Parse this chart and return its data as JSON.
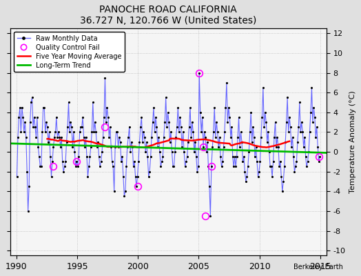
{
  "title": "PANOCHE ROAD CALIFORNIA",
  "subtitle": "36.727 N, 120.766 W (United States)",
  "ylabel": "Temperature Anomaly (°C)",
  "watermark": "Berkeley Earth",
  "xlim": [
    1989.5,
    2015.5
  ],
  "ylim": [
    -10.5,
    12.5
  ],
  "yticks": [
    -10,
    -8,
    -6,
    -4,
    -2,
    0,
    2,
    4,
    6,
    8,
    10,
    12
  ],
  "xticks": [
    1990,
    1995,
    2000,
    2005,
    2010,
    2015
  ],
  "bg_color": "#e0e0e0",
  "plot_bg_color": "#f5f5f5",
  "raw_line_color": "#6666ff",
  "raw_marker_color": "black",
  "qc_color": "magenta",
  "moving_avg_color": "red",
  "trend_color": "#00bb00",
  "raw_data_times": [
    1990.042,
    1990.125,
    1990.208,
    1990.292,
    1990.375,
    1990.458,
    1990.542,
    1990.625,
    1990.708,
    1990.792,
    1990.875,
    1990.958,
    1991.042,
    1991.125,
    1991.208,
    1991.292,
    1991.375,
    1991.458,
    1991.542,
    1991.625,
    1991.708,
    1991.792,
    1991.875,
    1991.958,
    1992.042,
    1992.125,
    1992.208,
    1992.292,
    1992.375,
    1992.458,
    1992.542,
    1992.625,
    1992.708,
    1992.792,
    1992.875,
    1992.958,
    1993.042,
    1993.125,
    1993.208,
    1993.292,
    1993.375,
    1993.458,
    1993.542,
    1993.625,
    1993.708,
    1993.792,
    1993.875,
    1993.958,
    1994.042,
    1994.125,
    1994.208,
    1994.292,
    1994.375,
    1994.458,
    1994.542,
    1994.625,
    1994.708,
    1994.792,
    1994.875,
    1994.958,
    1995.042,
    1995.125,
    1995.208,
    1995.292,
    1995.375,
    1995.458,
    1995.542,
    1995.625,
    1995.708,
    1995.792,
    1995.875,
    1995.958,
    1996.042,
    1996.125,
    1996.208,
    1996.292,
    1996.375,
    1996.458,
    1996.542,
    1996.625,
    1996.708,
    1996.792,
    1996.875,
    1996.958,
    1997.042,
    1997.125,
    1997.208,
    1997.292,
    1997.375,
    1997.458,
    1997.542,
    1997.625,
    1997.708,
    1997.792,
    1997.875,
    1997.958,
    1998.042,
    1998.125,
    1998.208,
    1998.292,
    1998.375,
    1998.458,
    1998.542,
    1998.625,
    1998.708,
    1998.792,
    1998.875,
    1998.958,
    1999.042,
    1999.125,
    1999.208,
    1999.292,
    1999.375,
    1999.458,
    1999.542,
    1999.625,
    1999.708,
    1999.792,
    1999.875,
    1999.958,
    2000.042,
    2000.125,
    2000.208,
    2000.292,
    2000.375,
    2000.458,
    2000.542,
    2000.625,
    2000.708,
    2000.792,
    2000.875,
    2000.958,
    2001.042,
    2001.125,
    2001.208,
    2001.292,
    2001.375,
    2001.458,
    2001.542,
    2001.625,
    2001.708,
    2001.792,
    2001.875,
    2001.958,
    2002.042,
    2002.125,
    2002.208,
    2002.292,
    2002.375,
    2002.458,
    2002.542,
    2002.625,
    2002.708,
    2002.792,
    2002.875,
    2002.958,
    2003.042,
    2003.125,
    2003.208,
    2003.292,
    2003.375,
    2003.458,
    2003.542,
    2003.625,
    2003.708,
    2003.792,
    2003.875,
    2003.958,
    2004.042,
    2004.125,
    2004.208,
    2004.292,
    2004.375,
    2004.458,
    2004.542,
    2004.625,
    2004.708,
    2004.792,
    2004.875,
    2004.958,
    2005.042,
    2005.125,
    2005.208,
    2005.292,
    2005.375,
    2005.458,
    2005.542,
    2005.625,
    2005.708,
    2005.792,
    2005.875,
    2005.958,
    2006.042,
    2006.125,
    2006.208,
    2006.292,
    2006.375,
    2006.458,
    2006.542,
    2006.625,
    2006.708,
    2006.792,
    2006.875,
    2006.958,
    2007.042,
    2007.125,
    2007.208,
    2007.292,
    2007.375,
    2007.458,
    2007.542,
    2007.625,
    2007.708,
    2007.792,
    2007.875,
    2007.958,
    2008.042,
    2008.125,
    2008.208,
    2008.292,
    2008.375,
    2008.458,
    2008.542,
    2008.625,
    2008.708,
    2008.792,
    2008.875,
    2008.958,
    2009.042,
    2009.125,
    2009.208,
    2009.292,
    2009.375,
    2009.458,
    2009.542,
    2009.625,
    2009.708,
    2009.792,
    2009.875,
    2009.958,
    2010.042,
    2010.125,
    2010.208,
    2010.292,
    2010.375,
    2010.458,
    2010.542,
    2010.625,
    2010.708,
    2010.792,
    2010.875,
    2010.958,
    2011.042,
    2011.125,
    2011.208,
    2011.292,
    2011.375,
    2011.458,
    2011.542,
    2011.625,
    2011.708,
    2011.792,
    2011.875,
    2011.958,
    2012.042,
    2012.125,
    2012.208,
    2012.292,
    2012.375,
    2012.458,
    2012.542,
    2012.625,
    2012.708,
    2012.792,
    2012.875,
    2012.958,
    2013.042,
    2013.125,
    2013.208,
    2013.292,
    2013.375,
    2013.458,
    2013.542,
    2013.625,
    2013.708,
    2013.792,
    2013.875,
    2013.958,
    2014.042,
    2014.125,
    2014.208,
    2014.292,
    2014.375,
    2014.458,
    2014.542,
    2014.625,
    2014.708,
    2014.792,
    2014.875,
    2014.958
  ],
  "raw_data_values": [
    -2.5,
    1.5,
    3.5,
    4.5,
    2.0,
    4.5,
    3.5,
    2.0,
    3.0,
    1.5,
    -2.0,
    -6.0,
    -3.5,
    3.0,
    5.0,
    5.5,
    2.5,
    3.5,
    2.5,
    1.5,
    3.5,
    0.5,
    -0.5,
    -1.5,
    -1.5,
    2.0,
    4.5,
    4.5,
    2.0,
    3.0,
    2.5,
    1.0,
    2.0,
    -0.5,
    -2.5,
    -1.0,
    0.5,
    1.5,
    2.0,
    3.5,
    1.5,
    2.0,
    1.5,
    0.5,
    1.5,
    -1.0,
    -2.0,
    -1.5,
    -1.0,
    1.0,
    2.5,
    5.0,
    2.0,
    3.0,
    2.5,
    0.5,
    2.0,
    0.0,
    -1.5,
    -1.0,
    -1.5,
    -0.5,
    2.0,
    2.5,
    2.5,
    3.5,
    1.5,
    0.5,
    1.5,
    -0.5,
    -2.5,
    -1.5,
    -0.5,
    0.5,
    2.0,
    5.0,
    2.0,
    3.0,
    2.0,
    0.5,
    1.0,
    -0.5,
    -1.5,
    -1.0,
    0.0,
    1.5,
    3.5,
    7.5,
    3.0,
    4.5,
    3.5,
    1.5,
    2.5,
    0.5,
    -1.0,
    -1.5,
    -4.0,
    0.5,
    2.0,
    2.0,
    0.5,
    1.5,
    1.0,
    -1.0,
    -0.5,
    -2.5,
    -4.5,
    -4.0,
    -1.5,
    0.5,
    1.5,
    2.5,
    0.0,
    1.0,
    0.5,
    -1.5,
    -1.0,
    -2.5,
    -3.5,
    -2.5,
    -1.0,
    1.0,
    2.5,
    3.5,
    1.0,
    2.0,
    1.5,
    0.0,
    1.0,
    -0.5,
    -2.5,
    -2.0,
    -0.5,
    1.5,
    3.0,
    4.5,
    2.0,
    3.5,
    2.5,
    0.5,
    1.5,
    0.0,
    -1.5,
    -1.0,
    -0.5,
    1.5,
    3.0,
    5.5,
    2.5,
    4.0,
    3.0,
    1.0,
    2.0,
    0.0,
    -1.5,
    -1.5,
    0.0,
    1.5,
    2.5,
    4.5,
    2.0,
    3.5,
    2.5,
    0.5,
    2.0,
    0.0,
    -1.5,
    -1.0,
    -0.5,
    1.0,
    2.5,
    4.5,
    1.5,
    3.0,
    2.0,
    0.0,
    1.0,
    -0.5,
    -2.0,
    -1.5,
    8.0,
    4.0,
    2.0,
    3.5,
    0.5,
    2.0,
    1.5,
    0.0,
    1.0,
    -1.5,
    -3.5,
    -6.5,
    -1.5,
    0.5,
    2.0,
    4.5,
    1.5,
    3.0,
    2.0,
    0.5,
    1.5,
    -0.5,
    -1.5,
    -1.0,
    0.5,
    2.0,
    4.5,
    7.0,
    3.0,
    4.5,
    3.5,
    1.5,
    2.5,
    -0.5,
    -1.5,
    -0.5,
    -1.5,
    -0.5,
    1.5,
    3.5,
    0.5,
    2.0,
    1.0,
    -1.0,
    -0.5,
    -2.0,
    -3.0,
    -2.5,
    -1.5,
    0.0,
    2.0,
    4.0,
    1.0,
    2.5,
    1.5,
    -0.5,
    0.5,
    -1.0,
    -2.5,
    -2.0,
    -1.0,
    1.5,
    3.5,
    6.5,
    2.5,
    4.0,
    3.0,
    1.0,
    2.0,
    0.0,
    -1.5,
    -1.5,
    -2.5,
    -1.0,
    1.5,
    3.0,
    0.5,
    1.5,
    0.5,
    -1.5,
    -1.0,
    -2.5,
    -4.0,
    -3.0,
    -1.5,
    1.0,
    3.0,
    5.5,
    2.0,
    3.5,
    2.5,
    0.5,
    1.5,
    -0.5,
    -2.0,
    -1.5,
    -1.0,
    1.0,
    2.5,
    5.0,
    2.0,
    3.0,
    2.0,
    0.5,
    1.5,
    -0.5,
    -1.5,
    -1.0,
    0.0,
    2.0,
    4.0,
    6.5,
    3.0,
    4.5,
    3.5,
    1.5,
    2.5,
    0.5,
    -1.0,
    -0.5
  ],
  "qc_fail_points": [
    {
      "time": 1993.042,
      "value": -1.5
    },
    {
      "time": 1994.958,
      "value": -1.0
    },
    {
      "time": 1997.292,
      "value": 2.5
    },
    {
      "time": 1999.958,
      "value": -3.5
    },
    {
      "time": 2005.042,
      "value": 8.0
    },
    {
      "time": 2005.375,
      "value": 0.5
    },
    {
      "time": 2005.542,
      "value": -6.5
    },
    {
      "time": 2006.042,
      "value": -1.5
    },
    {
      "time": 2014.875,
      "value": -0.5
    }
  ],
  "trend_x": [
    1989.5,
    2015.5
  ],
  "trend_y": [
    0.85,
    -0.1
  ]
}
